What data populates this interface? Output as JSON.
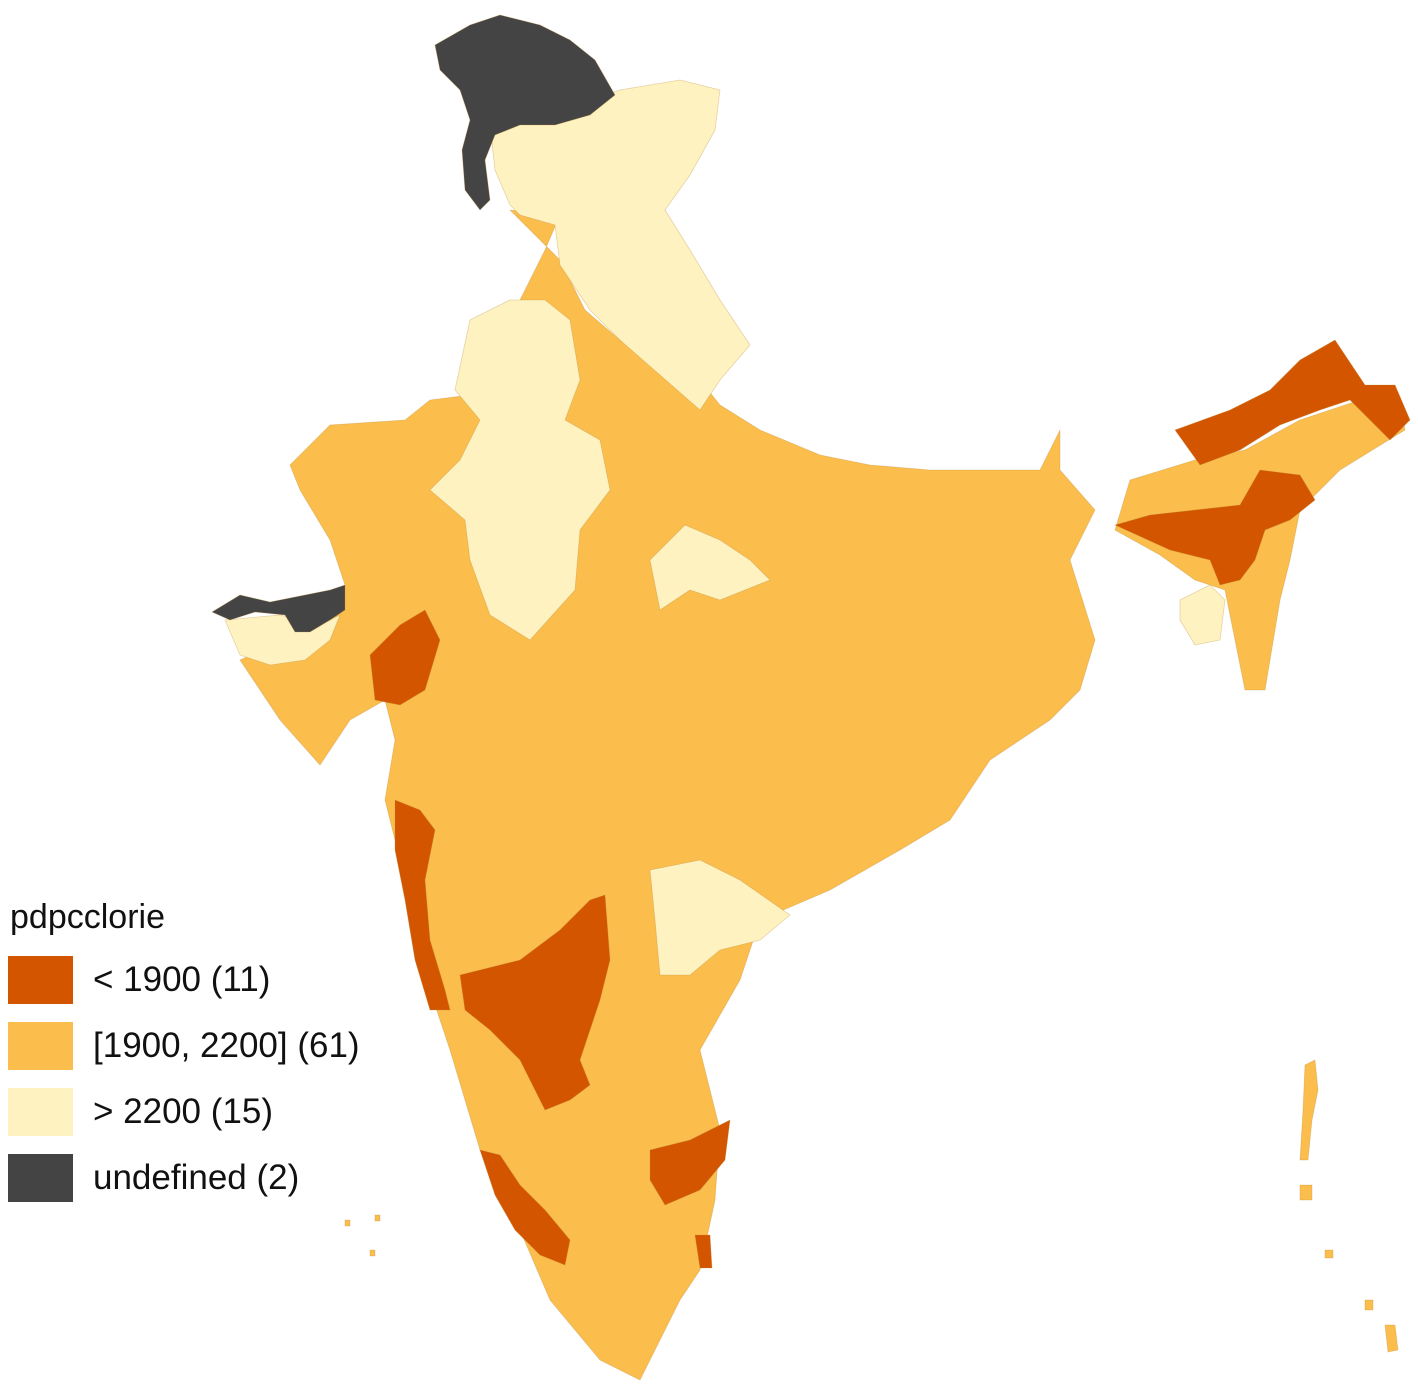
{
  "legend": {
    "title": "pdpcclorie",
    "items": [
      {
        "label": "< 1900 (11)",
        "color": "#d45500"
      },
      {
        "label": "[1900, 2200] (61)",
        "color": "#fbbd4c"
      },
      {
        "label": "> 2200 (15)",
        "color": "#fef3c0"
      },
      {
        "label": "undefined (2)",
        "color": "#444444"
      }
    ]
  },
  "regions": {
    "low": "#d45500",
    "mid": "#fbbd4c",
    "high": "#fef3c0",
    "undefined": "#444444"
  }
}
